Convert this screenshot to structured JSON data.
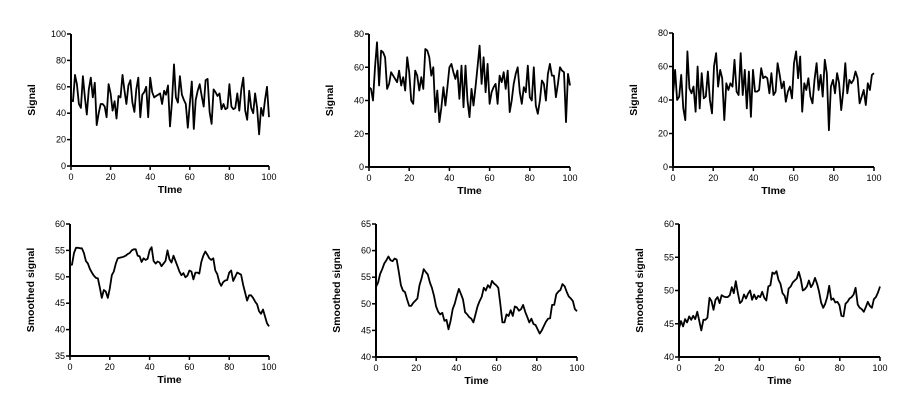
{
  "chart_data": [
    {
      "type": "line",
      "title": "",
      "xlabel": "TIme",
      "ylabel": "Signal",
      "xlim": [
        0,
        100
      ],
      "ylim": [
        0,
        100
      ],
      "xticks": [
        0,
        20,
        40,
        60,
        80,
        100
      ],
      "yticks": [
        0,
        20,
        40,
        60,
        80,
        100
      ],
      "values": [
        50,
        49,
        69,
        62,
        47,
        44,
        68,
        52,
        39,
        58,
        67,
        52,
        63,
        31,
        40,
        47,
        47,
        45,
        37,
        62,
        55,
        42,
        49,
        36,
        53,
        52,
        69,
        57,
        47,
        61,
        65,
        48,
        41,
        58,
        67,
        37,
        54,
        56,
        60,
        37,
        67,
        56,
        52,
        53,
        54,
        55,
        47,
        57,
        54,
        61,
        30,
        49,
        77,
        52,
        48,
        68,
        54,
        50,
        47,
        29,
        47,
        64,
        28,
        50,
        57,
        62,
        53,
        45,
        65,
        66,
        41,
        32,
        58,
        56,
        53,
        55,
        43,
        47,
        43,
        44,
        62,
        45,
        43,
        44,
        55,
        42,
        58,
        67,
        42,
        35,
        57,
        44,
        40,
        55,
        44,
        24,
        44,
        38,
        50,
        60,
        37
      ]
    },
    {
      "type": "line",
      "title": "",
      "xlabel": "TIme",
      "ylabel": "Signal",
      "xlim": [
        0,
        100
      ],
      "ylim": [
        0,
        80
      ],
      "xticks": [
        0,
        20,
        40,
        60,
        80,
        100
      ],
      "yticks": [
        0,
        20,
        40,
        60,
        80
      ],
      "values": [
        48,
        47,
        40,
        60,
        75,
        49,
        70,
        69,
        66,
        47,
        50,
        57,
        55,
        53,
        51,
        58,
        49,
        54,
        46,
        66,
        57,
        40,
        38,
        58,
        55,
        46,
        54,
        47,
        71,
        70,
        66,
        55,
        60,
        33,
        46,
        27,
        36,
        48,
        37,
        48,
        60,
        62,
        57,
        53,
        58,
        41,
        61,
        36,
        61,
        40,
        30,
        47,
        37,
        48,
        60,
        73,
        50,
        66,
        45,
        62,
        38,
        45,
        48,
        50,
        38,
        55,
        51,
        57,
        47,
        58,
        33,
        40,
        50,
        56,
        60,
        45,
        38,
        48,
        45,
        61,
        42,
        40,
        60,
        37,
        32,
        40,
        52,
        50,
        40,
        56,
        62,
        55,
        55,
        42,
        50,
        60,
        58,
        57,
        27,
        56,
        49
      ]
    },
    {
      "type": "line",
      "title": "",
      "xlabel": "TIme",
      "ylabel": "Signal",
      "xlim": [
        0,
        100
      ],
      "ylim": [
        0,
        80
      ],
      "xticks": [
        0,
        20,
        40,
        60,
        80,
        100
      ],
      "yticks": [
        0,
        20,
        40,
        60,
        80
      ],
      "values": [
        43,
        58,
        40,
        42,
        55,
        35,
        28,
        69,
        47,
        44,
        48,
        33,
        60,
        35,
        56,
        41,
        42,
        57,
        40,
        32,
        60,
        68,
        48,
        58,
        53,
        28,
        50,
        46,
        50,
        48,
        64,
        45,
        43,
        68,
        43,
        58,
        35,
        57,
        30,
        58,
        45,
        45,
        46,
        59,
        53,
        54,
        53,
        44,
        56,
        43,
        45,
        62,
        55,
        47,
        51,
        39,
        45,
        48,
        41,
        62,
        69,
        53,
        66,
        33,
        50,
        46,
        53,
        42,
        38,
        52,
        62,
        46,
        55,
        42,
        64,
        56,
        22,
        48,
        52,
        44,
        56,
        50,
        34,
        45,
        62,
        44,
        52,
        50,
        52,
        57,
        53,
        38,
        42,
        46,
        37,
        50,
        46,
        55,
        56
      ]
    },
    {
      "type": "line",
      "title": "",
      "xlabel": "Time",
      "ylabel": "Smoothed signal",
      "xlim": [
        0,
        100
      ],
      "ylim": [
        35,
        60
      ],
      "xticks": [
        0,
        20,
        40,
        60,
        80,
        100
      ],
      "yticks": [
        35,
        40,
        45,
        50,
        55,
        60
      ],
      "values": [
        52.3,
        52.3,
        54.5,
        55.5,
        55.5,
        55.4,
        55.4,
        54.5,
        53,
        52.5,
        51.5,
        50.8,
        50.2,
        49.8,
        49.7,
        48,
        46,
        47.5,
        47.2,
        46,
        47.8,
        50.3,
        51,
        52.5,
        53.5,
        53.6,
        53.7,
        53.8,
        54,
        54.3,
        54.5,
        55,
        55.2,
        55.2,
        54,
        53.9,
        52.8,
        53.5,
        53.2,
        53.4,
        55,
        55.6,
        53,
        52.5,
        52.9,
        52.7,
        52,
        52.5,
        53,
        55,
        53.3,
        52.7,
        54,
        53,
        52,
        51,
        50.3,
        50.7,
        49.9,
        50.2,
        51.2,
        51,
        49.5,
        50.8,
        50.8,
        50.6,
        52.8,
        54,
        54.8,
        54.2,
        53.5,
        53.2,
        53.5,
        51.2,
        50.5,
        49,
        48.3,
        49,
        49.3,
        49.4,
        50.8,
        51.2,
        49.2,
        50,
        50.8,
        50.6,
        50.4,
        48.5,
        47,
        45.5,
        46.5,
        46.5,
        46,
        45.3,
        44.8,
        43.5,
        43,
        43.8,
        42.5,
        41.2,
        40.6
      ]
    },
    {
      "type": "line",
      "title": "",
      "xlabel": "Time",
      "ylabel": "Smoothed signal",
      "xlim": [
        0,
        100
      ],
      "ylim": [
        40,
        65
      ],
      "xticks": [
        0,
        20,
        40,
        60,
        80,
        100
      ],
      "yticks": [
        40,
        45,
        50,
        55,
        60,
        65
      ],
      "values": [
        53.2,
        54,
        55.6,
        56.5,
        57.6,
        58.2,
        58.9,
        58.2,
        58,
        58.5,
        58.3,
        56,
        53.5,
        52.5,
        52.2,
        50.8,
        49.6,
        49.6,
        50.2,
        50.6,
        51,
        53.5,
        54.8,
        56.5,
        56,
        55.5,
        54,
        53,
        51.5,
        49.5,
        48.5,
        48,
        48.3,
        46.8,
        47,
        45.2,
        46.8,
        49,
        50,
        51.5,
        52.8,
        51.8,
        50.8,
        48.4,
        48,
        47.5,
        47.2,
        46.5,
        48,
        49.5,
        50.5,
        51.3,
        53,
        52.5,
        53.5,
        53,
        54.3,
        53.8,
        53.5,
        53,
        50,
        46.5,
        46.5,
        48,
        47.7,
        48.8,
        47.7,
        49.5,
        49.3,
        48.7,
        49,
        49.8,
        48.5,
        47.5,
        46.5,
        47.2,
        46.2,
        46,
        45.2,
        44.4,
        45,
        45.8,
        46.6,
        47.2,
        47.3,
        49.8,
        49.8,
        51.8,
        52.3,
        52.6,
        53.7,
        53.3,
        52.3,
        51.4,
        51,
        50.5,
        49,
        48.6
      ]
    },
    {
      "type": "line",
      "title": "",
      "xlabel": "Time",
      "ylabel": "Smoothed signal",
      "xlim": [
        0,
        100
      ],
      "ylim": [
        40,
        60
      ],
      "xticks": [
        0,
        20,
        40,
        60,
        80,
        100
      ],
      "yticks": [
        40,
        45,
        50,
        55,
        60
      ],
      "values": [
        44.3,
        45.4,
        44.6,
        45.7,
        45.2,
        46.1,
        45.6,
        46.2,
        45.7,
        46.8,
        45.4,
        44,
        45.6,
        45.6,
        45.9,
        48.9,
        48.4,
        47.1,
        48.6,
        49,
        48.1,
        49.3,
        49.1,
        49,
        49,
        49.3,
        50.5,
        49.6,
        51.4,
        49.6,
        48.1,
        48.4,
        49.4,
        48.8,
        49.5,
        50,
        48.6,
        49.4,
        48.7,
        49.2,
        49,
        49.8,
        48.9,
        48.5,
        50.6,
        50.8,
        52.7,
        52.5,
        52.9,
        51.6,
        51,
        49.6,
        49.2,
        48.1,
        50.3,
        50.6,
        51.2,
        51.5,
        51.8,
        52.8,
        51.7,
        50,
        50.2,
        50.6,
        51.5,
        50.5,
        51,
        51.9,
        51,
        49.8,
        48.2,
        47.4,
        48,
        49,
        50.7,
        48.6,
        48.8,
        48.2,
        48.3,
        47.8,
        46.2,
        46.1,
        48,
        48.3,
        48.8,
        49,
        49.4,
        50.4,
        47.9,
        47.4,
        47.2,
        46.8,
        47.5,
        48.3,
        47.7,
        47.4,
        48.7,
        49,
        49.7,
        50.6
      ]
    }
  ]
}
